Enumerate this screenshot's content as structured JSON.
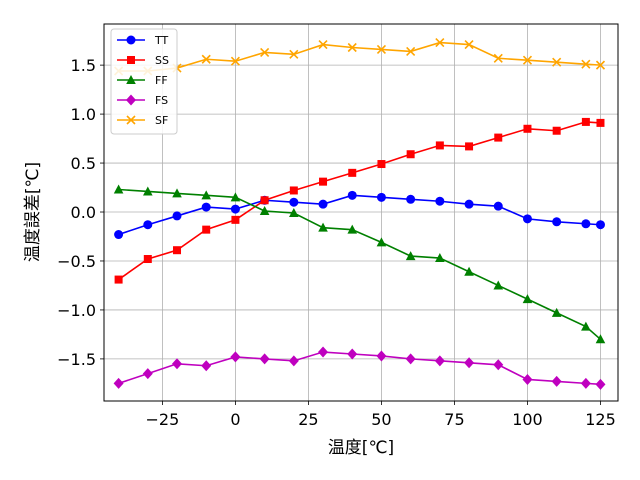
{
  "chart_data": {
    "type": "line",
    "title": "",
    "xlabel": "温度[℃]",
    "ylabel": "温度誤差[℃]",
    "xlim": [
      -45,
      131
    ],
    "ylim": [
      -1.93,
      1.92
    ],
    "xticks": [
      -25,
      0,
      25,
      50,
      75,
      100,
      125
    ],
    "xtick_labels": [
      "−25",
      "0",
      "25",
      "50",
      "75",
      "100",
      "125"
    ],
    "yticks": [
      -1.5,
      -1.0,
      -0.5,
      0.0,
      0.5,
      1.0,
      1.5
    ],
    "ytick_labels": [
      "−1.5",
      "−1.0",
      "−0.5",
      "0.0",
      "0.5",
      "1.0",
      "1.5"
    ],
    "grid": true,
    "legend_position": "top-left",
    "x": [
      -40,
      -30,
      -20,
      -10,
      0,
      10,
      20,
      30,
      40,
      50,
      60,
      70,
      80,
      90,
      100,
      110,
      120,
      125
    ],
    "series": [
      {
        "name": "TT",
        "color": "#0000ff",
        "marker": "circle",
        "values": [
          -0.23,
          -0.13,
          -0.04,
          0.05,
          0.03,
          0.12,
          0.1,
          0.08,
          0.17,
          0.15,
          0.13,
          0.11,
          0.08,
          0.06,
          -0.07,
          -0.1,
          -0.12,
          -0.13
        ]
      },
      {
        "name": "SS",
        "color": "#ff0000",
        "marker": "square",
        "values": [
          -0.69,
          -0.48,
          -0.39,
          -0.18,
          -0.08,
          0.12,
          0.22,
          0.31,
          0.4,
          0.49,
          0.59,
          0.68,
          0.67,
          0.76,
          0.85,
          0.83,
          0.92,
          0.91
        ]
      },
      {
        "name": "FF",
        "color": "#008000",
        "marker": "triangle",
        "values": [
          0.23,
          0.21,
          0.19,
          0.17,
          0.15,
          0.01,
          -0.01,
          -0.16,
          -0.18,
          -0.31,
          -0.45,
          -0.47,
          -0.61,
          -0.75,
          -0.89,
          -1.03,
          -1.17,
          -1.3
        ]
      },
      {
        "name": "FS",
        "color": "#bf00bf",
        "marker": "diamond",
        "values": [
          -1.75,
          -1.65,
          -1.55,
          -1.57,
          -1.48,
          -1.5,
          -1.52,
          -1.43,
          -1.45,
          -1.47,
          -1.5,
          -1.52,
          -1.54,
          -1.56,
          -1.71,
          -1.73,
          -1.75,
          -1.76
        ]
      },
      {
        "name": "SF",
        "color": "#ffa500",
        "marker": "x",
        "values": [
          1.44,
          1.44,
          1.47,
          1.56,
          1.54,
          1.63,
          1.61,
          1.71,
          1.68,
          1.66,
          1.64,
          1.73,
          1.71,
          1.57,
          1.55,
          1.53,
          1.51,
          1.5
        ]
      }
    ]
  }
}
